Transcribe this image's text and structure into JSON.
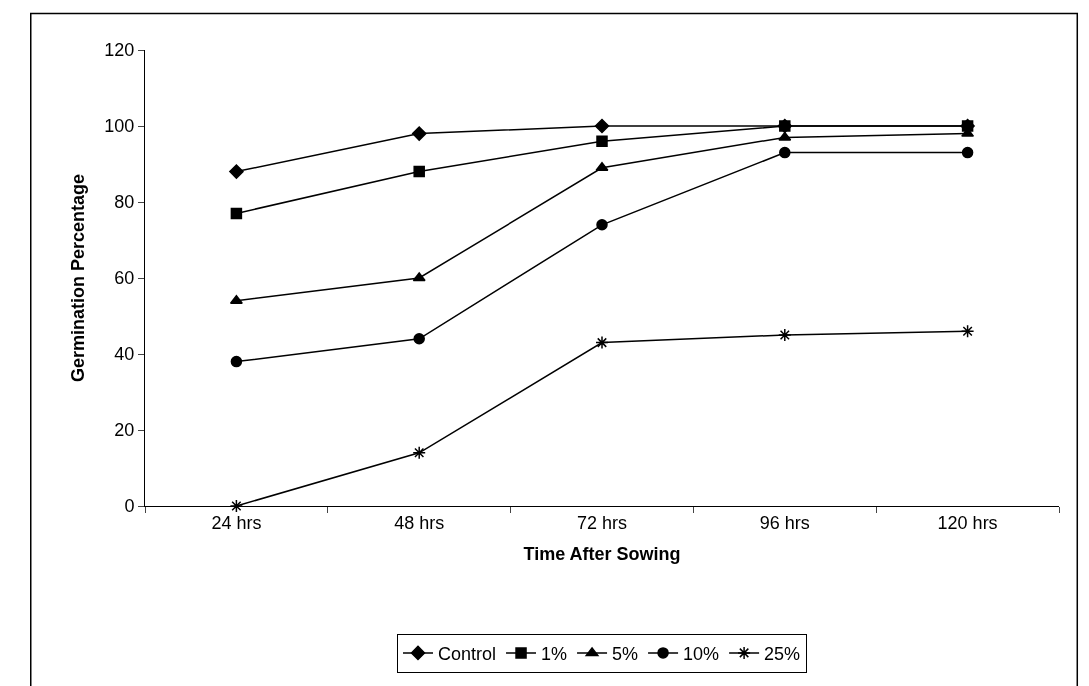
{
  "chart_data": {
    "type": "line",
    "xlabel": "Time After Sowing",
    "ylabel": "Germination Percentage",
    "categories": [
      "24 hrs",
      "48 hrs",
      "72 hrs",
      "96 hrs",
      "120 hrs"
    ],
    "series": [
      {
        "name": "Control",
        "color": "#000000",
        "marker": "diamond",
        "values": [
          88,
          98,
          100,
          100,
          100
        ]
      },
      {
        "name": "1%",
        "color": "#000000",
        "marker": "square",
        "values": [
          77,
          88,
          96,
          100,
          100
        ]
      },
      {
        "name": "5%",
        "color": "#000000",
        "marker": "triangle",
        "values": [
          54,
          60,
          89,
          97,
          98
        ]
      },
      {
        "name": "10%",
        "color": "#000000",
        "marker": "circle",
        "values": [
          38,
          44,
          74,
          93,
          93
        ]
      },
      {
        "name": "25%",
        "color": "#000000",
        "marker": "cross",
        "values": [
          0,
          14,
          43,
          45,
          46
        ]
      }
    ],
    "ylim": [
      0,
      120
    ],
    "yticks": [
      0,
      20,
      40,
      60,
      80,
      100,
      120
    ],
    "grid": false,
    "legend": "bottom",
    "line_style": "solid"
  }
}
